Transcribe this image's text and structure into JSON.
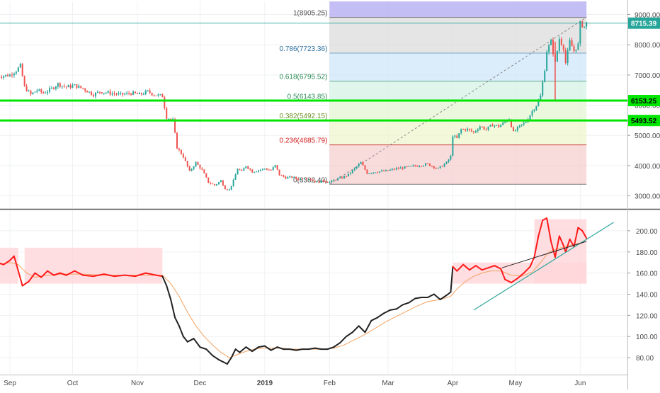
{
  "colors": {
    "up": "#26a69a",
    "down": "#ef5350",
    "grid": "#eef0f3",
    "axis_text": "#4a4a4a",
    "panel_border": "#555555",
    "hline": "#00e600",
    "price_line": "#26a69a",
    "fib_100": "#b9b4f3",
    "fib_786": "#dcdcdc",
    "fib_618": "#cfe6f8",
    "fib_500": "#d6f2e6",
    "fib_382": "#e6f5d3",
    "fib_236": "#eef5cc",
    "fib_0": "#f6cfcf",
    "osc_red": "#ff1a1a",
    "osc_black": "#222222",
    "osc_ma": "#f4a261",
    "trend": "#2fa89c",
    "zone": "#ffd6da"
  },
  "chart_data": [
    {
      "type": "candlestick",
      "panel": "price",
      "y_axis": {
        "range": [
          2850,
          9200
        ],
        "ticks": [
          3000,
          4000,
          5000,
          6000,
          7000,
          8000,
          9000
        ],
        "tick_labels": [
          "3000.00",
          "4000.00",
          "5000.00",
          "6000.00",
          "7000.00",
          "8000.00",
          "9000.00"
        ]
      },
      "x_axis": {
        "labels": [
          {
            "day": 0,
            "label": "Sep"
          },
          {
            "day": 30,
            "label": "Oct"
          },
          {
            "day": 61,
            "label": "Nov"
          },
          {
            "day": 91,
            "label": "Dec"
          },
          {
            "day": 122,
            "label": "2019"
          },
          {
            "day": 153,
            "label": "Feb"
          },
          {
            "day": 181,
            "label": "Mar"
          },
          {
            "day": 212,
            "label": "Apr"
          },
          {
            "day": 242,
            "label": "May"
          },
          {
            "day": 273,
            "label": "Jun"
          }
        ]
      },
      "close_path": [
        [
          -6,
          6950
        ],
        [
          0,
          7000
        ],
        [
          3,
          7150
        ],
        [
          5,
          7300
        ],
        [
          7,
          6600
        ],
        [
          10,
          6350
        ],
        [
          13,
          6500
        ],
        [
          16,
          6400
        ],
        [
          20,
          6550
        ],
        [
          23,
          6700
        ],
        [
          27,
          6600
        ],
        [
          31,
          6650
        ],
        [
          35,
          6550
        ],
        [
          40,
          6350
        ],
        [
          43,
          6450
        ],
        [
          48,
          6400
        ],
        [
          53,
          6350
        ],
        [
          58,
          6400
        ],
        [
          62,
          6350
        ],
        [
          66,
          6450
        ],
        [
          69,
          6350
        ],
        [
          73,
          6300
        ],
        [
          75,
          5600
        ],
        [
          78,
          5500
        ],
        [
          80,
          4600
        ],
        [
          83,
          4300
        ],
        [
          86,
          3800
        ],
        [
          89,
          4100
        ],
        [
          92,
          3850
        ],
        [
          95,
          3450
        ],
        [
          98,
          3350
        ],
        [
          101,
          3500
        ],
        [
          103,
          3250
        ],
        [
          105,
          3200
        ],
        [
          107,
          3500
        ],
        [
          109,
          3900
        ],
        [
          111,
          3800
        ],
        [
          113,
          4000
        ],
        [
          116,
          3800
        ],
        [
          119,
          3850
        ],
        [
          122,
          3900
        ],
        [
          125,
          3850
        ],
        [
          127,
          4000
        ],
        [
          129,
          3700
        ],
        [
          132,
          3600
        ],
        [
          135,
          3620
        ],
        [
          138,
          3550
        ],
        [
          141,
          3600
        ],
        [
          144,
          3550
        ],
        [
          147,
          3450
        ],
        [
          150,
          3500
        ],
        [
          153,
          3450
        ],
        [
          156,
          3550
        ],
        [
          159,
          3600
        ],
        [
          162,
          3700
        ],
        [
          165,
          3900
        ],
        [
          168,
          4100
        ],
        [
          171,
          3750
        ],
        [
          175,
          3800
        ],
        [
          180,
          3820
        ],
        [
          185,
          3900
        ],
        [
          190,
          3950
        ],
        [
          195,
          4000
        ],
        [
          200,
          4050
        ],
        [
          205,
          3900
        ],
        [
          209,
          4100
        ],
        [
          211,
          4300
        ],
        [
          212,
          5000
        ],
        [
          214,
          4900
        ],
        [
          216,
          5200
        ],
        [
          219,
          5200
        ],
        [
          222,
          5100
        ],
        [
          225,
          5300
        ],
        [
          228,
          5200
        ],
        [
          231,
          5350
        ],
        [
          234,
          5300
        ],
        [
          237,
          5450
        ],
        [
          239,
          5550
        ],
        [
          241,
          5100
        ],
        [
          244,
          5300
        ],
        [
          247,
          5450
        ],
        [
          250,
          5800
        ],
        [
          252,
          6000
        ],
        [
          254,
          6300
        ],
        [
          256,
          7200
        ],
        [
          257,
          7800
        ],
        [
          259,
          8100
        ],
        [
          261,
          7400
        ],
        [
          263,
          8200
        ],
        [
          265,
          7900
        ],
        [
          266,
          7400
        ],
        [
          268,
          8100
        ],
        [
          270,
          7800
        ],
        [
          272,
          8000
        ],
        [
          273,
          8700
        ],
        [
          275,
          8600
        ],
        [
          276,
          8715.39
        ]
      ],
      "last_price": 8715.39,
      "last_price_label": "8715.39",
      "horizontal_lines": [
        {
          "value": 6153.25,
          "label": "6153.25"
        },
        {
          "value": 5493.52,
          "label": "5493.52"
        }
      ],
      "fibonacci": {
        "start_day": 153,
        "end_day": 276,
        "levels": [
          {
            "ratio": "1",
            "value": 8905.25,
            "label": "1(8905.25)"
          },
          {
            "ratio": "0.786",
            "value": 7723.36,
            "label": "0.786(7723.36)"
          },
          {
            "ratio": "0.618",
            "value": 6795.52,
            "label": "0.618(6795.52)"
          },
          {
            "ratio": "0.5",
            "value": 6143.85,
            "label": "0.5(6143.85)"
          },
          {
            "ratio": "0.382",
            "value": 5492.15,
            "label": "0.382(5492.15)"
          },
          {
            "ratio": "0.236",
            "value": 4685.79,
            "label": "0.236(4685.79)"
          },
          {
            "ratio": "0",
            "value": 3382.4,
            "label": "0(3382.40)"
          }
        ]
      }
    },
    {
      "type": "line",
      "panel": "oscillator",
      "y_axis": {
        "range": [
          70,
          212
        ],
        "ticks": [
          80,
          100,
          120,
          140,
          160,
          180,
          200
        ],
        "tick_labels": [
          "80.00",
          "100.00",
          "120.00",
          "140.00",
          "160.00",
          "180.00",
          "200.00"
        ]
      },
      "series": [
        {
          "role": "main",
          "points": [
            [
              -6,
              170
            ],
            [
              -3,
              168
            ],
            [
              0,
              172
            ],
            [
              2,
              176
            ],
            [
              4,
              162
            ],
            [
              6,
              148
            ],
            [
              9,
              152
            ],
            [
              12,
              160
            ],
            [
              15,
              156
            ],
            [
              18,
              162
            ],
            [
              21,
              158
            ],
            [
              24,
              160
            ],
            [
              27,
              158
            ],
            [
              31,
              162
            ],
            [
              35,
              158
            ],
            [
              40,
              157
            ],
            [
              45,
              159
            ],
            [
              50,
              157
            ],
            [
              55,
              158
            ],
            [
              60,
              157
            ],
            [
              65,
              160
            ],
            [
              70,
              158
            ],
            [
              73,
              157
            ],
            [
              75,
              148
            ],
            [
              77,
              135
            ],
            [
              79,
              118
            ],
            [
              81,
              110
            ],
            [
              83,
              100
            ],
            [
              85,
              95
            ],
            [
              88,
              98
            ],
            [
              91,
              90
            ],
            [
              94,
              88
            ],
            [
              97,
              82
            ],
            [
              100,
              78
            ],
            [
              102,
              76
            ],
            [
              104,
              74
            ],
            [
              106,
              80
            ],
            [
              108,
              88
            ],
            [
              110,
              85
            ],
            [
              113,
              90
            ],
            [
              116,
              86
            ],
            [
              119,
              90
            ],
            [
              122,
              91
            ],
            [
              125,
              87
            ],
            [
              128,
              90
            ],
            [
              131,
              88
            ],
            [
              134,
              88
            ],
            [
              137,
              87
            ],
            [
              140,
              88
            ],
            [
              143,
              88
            ],
            [
              146,
              89
            ],
            [
              149,
              88
            ],
            [
              152,
              88
            ],
            [
              155,
              90
            ],
            [
              158,
              94
            ],
            [
              161,
              100
            ],
            [
              164,
              104
            ],
            [
              167,
              110
            ],
            [
              170,
              104
            ],
            [
              173,
              115
            ],
            [
              176,
              118
            ],
            [
              179,
              122
            ],
            [
              182,
              125
            ],
            [
              185,
              126
            ],
            [
              188,
              130
            ],
            [
              191,
              132
            ],
            [
              194,
              136
            ],
            [
              197,
              137
            ],
            [
              200,
              137
            ],
            [
              203,
              140
            ],
            [
              206,
              135
            ],
            [
              209,
              139
            ],
            [
              211,
              142
            ],
            [
              212,
              166
            ],
            [
              214,
              162
            ],
            [
              217,
              168
            ],
            [
              220,
              163
            ],
            [
              223,
              167
            ],
            [
              226,
              163
            ],
            [
              229,
              165
            ],
            [
              232,
              167
            ],
            [
              235,
              164
            ],
            [
              237,
              154
            ],
            [
              240,
              151
            ],
            [
              243,
              155
            ],
            [
              246,
              160
            ],
            [
              249,
              166
            ],
            [
              251,
              175
            ],
            [
              253,
              195
            ],
            [
              255,
              210
            ],
            [
              257,
              212
            ],
            [
              259,
              190
            ],
            [
              261,
              175
            ],
            [
              263,
              195
            ],
            [
              265,
              186
            ],
            [
              266,
              180
            ],
            [
              268,
              192
            ],
            [
              270,
              185
            ],
            [
              272,
              203
            ],
            [
              274,
              200
            ],
            [
              276,
              193
            ]
          ],
          "highlight_ranges": [
            [
              -6,
              73
            ],
            [
              212,
              276
            ]
          ]
        },
        {
          "role": "moving_average",
          "points": [
            [
              -6,
              168
            ],
            [
              0,
              170
            ],
            [
              4,
              168
            ],
            [
              8,
              160
            ],
            [
              12,
              156
            ],
            [
              18,
              158
            ],
            [
              25,
              159
            ],
            [
              35,
              159
            ],
            [
              45,
              158
            ],
            [
              55,
              158
            ],
            [
              65,
              158
            ],
            [
              73,
              158
            ],
            [
              77,
              150
            ],
            [
              81,
              138
            ],
            [
              85,
              123
            ],
            [
              89,
              110
            ],
            [
              93,
              100
            ],
            [
              97,
              92
            ],
            [
              101,
              85
            ],
            [
              105,
              80
            ],
            [
              109,
              83
            ],
            [
              113,
              86
            ],
            [
              117,
              88
            ],
            [
              121,
              89
            ],
            [
              125,
              89
            ],
            [
              130,
              89
            ],
            [
              135,
              88
            ],
            [
              140,
              88
            ],
            [
              145,
              88
            ],
            [
              150,
              88
            ],
            [
              155,
              89
            ],
            [
              160,
              92
            ],
            [
              165,
              97
            ],
            [
              170,
              102
            ],
            [
              175,
              108
            ],
            [
              180,
              114
            ],
            [
              185,
              119
            ],
            [
              190,
              124
            ],
            [
              195,
              129
            ],
            [
              200,
              133
            ],
            [
              206,
              135
            ],
            [
              211,
              138
            ],
            [
              214,
              145
            ],
            [
              218,
              152
            ],
            [
              222,
              157
            ],
            [
              226,
              160
            ],
            [
              230,
              162
            ],
            [
              235,
              162
            ],
            [
              240,
              158
            ],
            [
              245,
              157
            ],
            [
              250,
              161
            ],
            [
              254,
              170
            ],
            [
              258,
              180
            ],
            [
              262,
              183
            ],
            [
              266,
              185
            ],
            [
              270,
              187
            ],
            [
              276,
              190
            ]
          ]
        }
      ],
      "zones": [
        {
          "x0": -6,
          "x1": 4,
          "y0": 150,
          "y1": 184
        },
        {
          "x0": 7,
          "x1": 73,
          "y0": 150,
          "y1": 184
        },
        {
          "x0": 212,
          "x1": 276,
          "y0": 150,
          "y1": 170
        },
        {
          "x0": 251,
          "x1": 276,
          "y0": 150,
          "y1": 211
        }
      ],
      "trendline": {
        "x0": 222,
        "y0": 125,
        "x1": 289,
        "y1": 208
      }
    }
  ]
}
